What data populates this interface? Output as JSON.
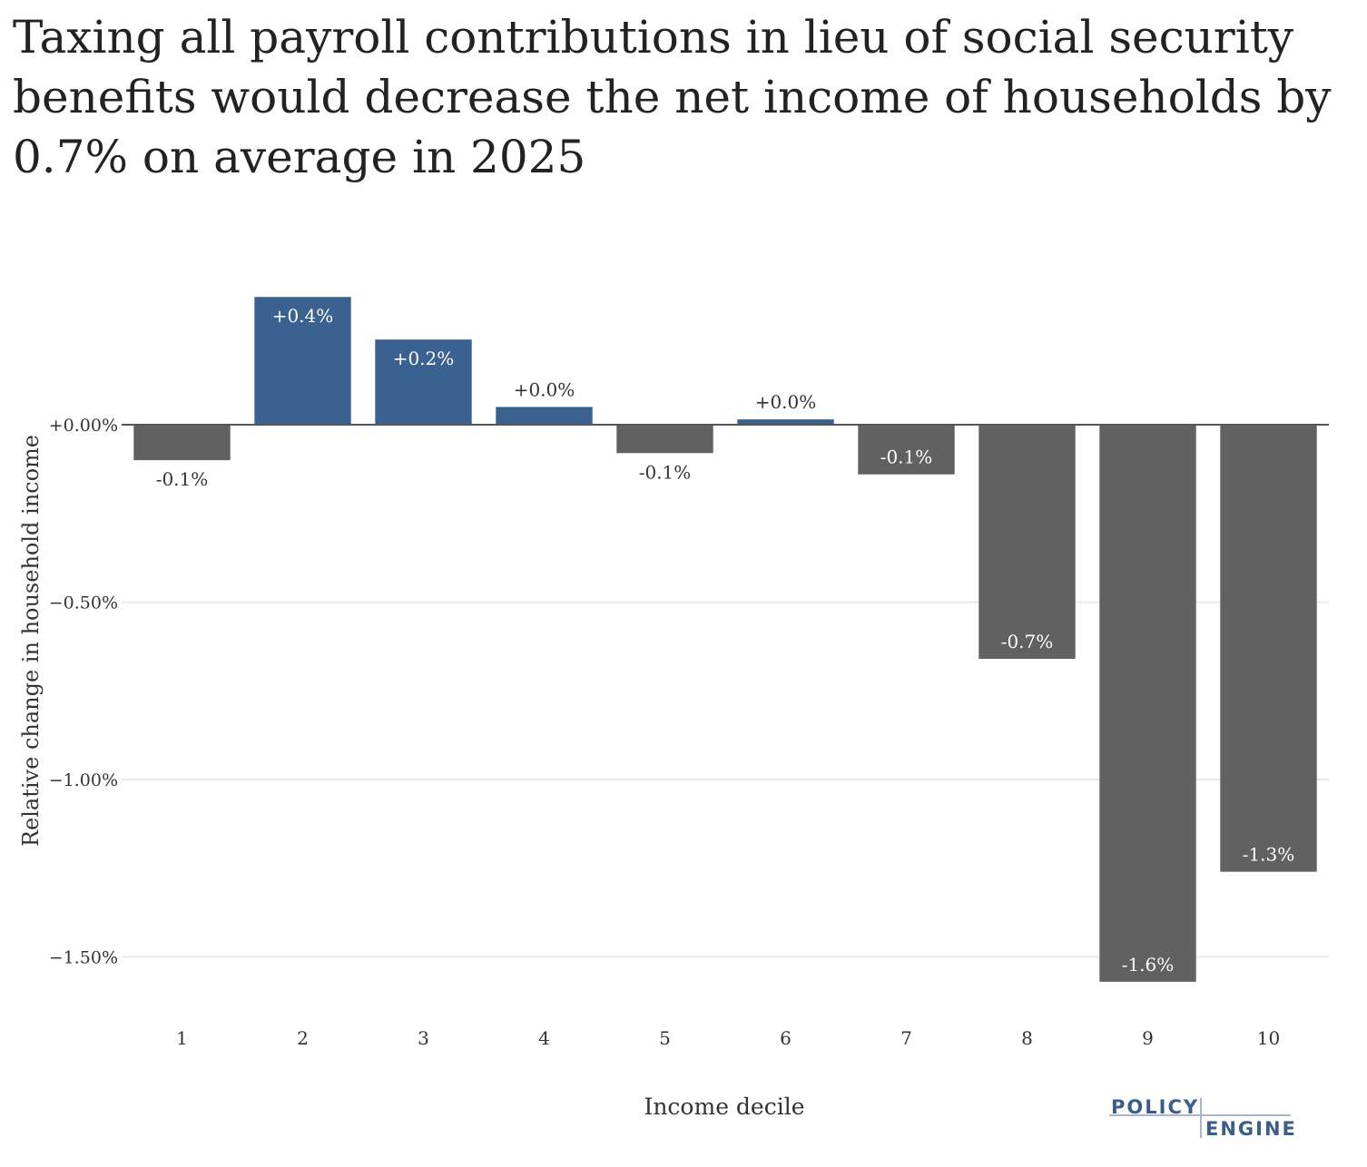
{
  "title": "Taxing all payroll contributions in lieu of social security benefits would decrease the net income of households by 0.7% on average in 2025",
  "logo": {
    "top": "POLICY",
    "bottom": "ENGINE"
  },
  "colors": {
    "positive": "#3a618f",
    "negative": "#616161",
    "grid": "#e8e8e8",
    "zero_line": "#555555"
  },
  "chart_data": {
    "type": "bar",
    "title": "Taxing all payroll contributions in lieu of social security benefits would decrease the net income of households by 0.7% on average in 2025",
    "xlabel": "Income decile",
    "ylabel": "Relative change in household income",
    "categories": [
      "1",
      "2",
      "3",
      "4",
      "5",
      "6",
      "7",
      "8",
      "9",
      "10"
    ],
    "values": [
      -0.1,
      0.36,
      0.24,
      0.05,
      -0.08,
      0.015,
      -0.14,
      -0.66,
      -1.57,
      -1.26
    ],
    "data_labels": [
      "-0.1%",
      "+0.4%",
      "+0.2%",
      "+0.0%",
      "-0.1%",
      "+0.0%",
      "-0.1%",
      "-0.7%",
      "-1.6%",
      "-1.3%"
    ],
    "yticks": [
      0,
      -0.5,
      -1.0,
      -1.5
    ],
    "ytick_labels": [
      "+0.00%",
      "−0.50%",
      "−1.00%",
      "−1.50%"
    ],
    "ylim": [
      -1.65,
      0.45
    ],
    "grid": true,
    "legend": false
  }
}
